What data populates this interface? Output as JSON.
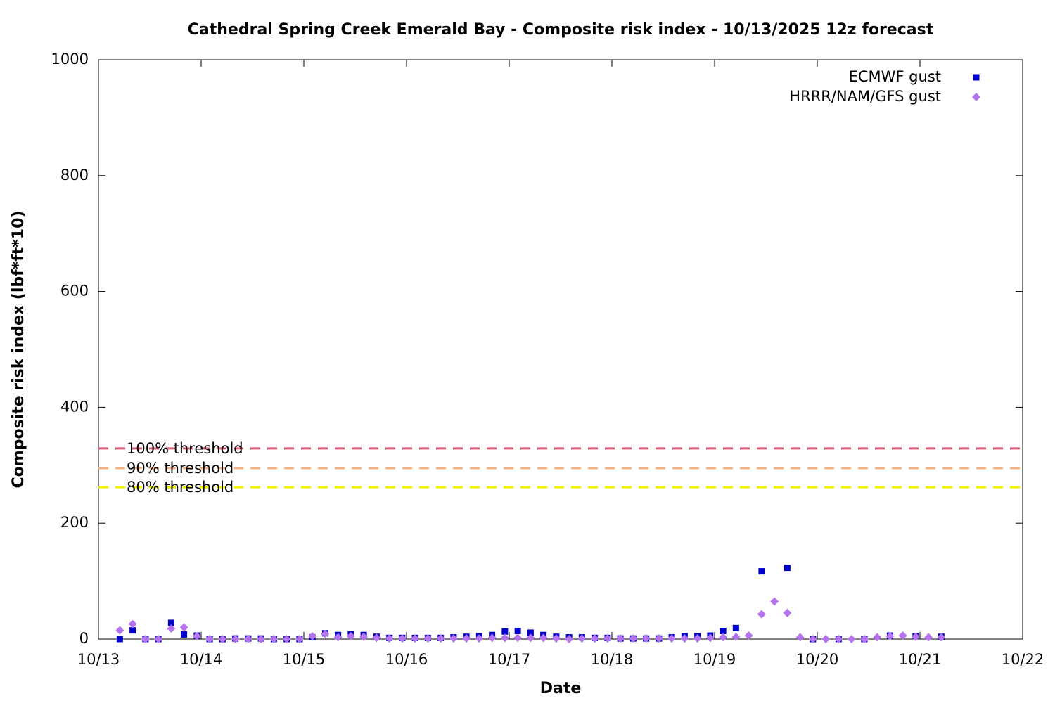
{
  "chart_data": {
    "type": "scatter",
    "title": "Cathedral Spring Creek Emerald Bay - Composite risk index - 10/13/2025 12z forecast",
    "x_label": "Date",
    "y_label": "Composite risk index (lbf*ft*10)",
    "xlim": [
      13,
      22
    ],
    "xticks": [
      {
        "value": 13,
        "label": "10/13"
      },
      {
        "value": 14,
        "label": "10/14"
      },
      {
        "value": 15,
        "label": "10/15"
      },
      {
        "value": 16,
        "label": "10/16"
      },
      {
        "value": 17,
        "label": "10/17"
      },
      {
        "value": 18,
        "label": "10/18"
      },
      {
        "value": 19,
        "label": "10/19"
      },
      {
        "value": 20,
        "label": "10/20"
      },
      {
        "value": 21,
        "label": "10/21"
      },
      {
        "value": 22,
        "label": "10/22"
      }
    ],
    "ylim": [
      0,
      1000
    ],
    "yticks": [
      0,
      200,
      400,
      600,
      800,
      1000
    ],
    "grid": false,
    "legend": "top-right",
    "thresholds": [
      {
        "name": "100% threshold",
        "value": 329,
        "color": "#d9607a"
      },
      {
        "name": "90% threshold",
        "value": 295,
        "color": "#f5b07f"
      },
      {
        "name": "80% threshold",
        "value": 262,
        "color": "#f2f200"
      }
    ],
    "series": [
      {
        "name": "ECMWF gust",
        "color": "#0000cc",
        "marker": "square",
        "x": [
          13.208,
          13.333,
          13.458,
          13.583,
          13.708,
          13.833,
          13.958,
          14.083,
          14.208,
          14.333,
          14.458,
          14.583,
          14.708,
          14.833,
          14.958,
          15.083,
          15.208,
          15.333,
          15.458,
          15.583,
          15.708,
          15.833,
          15.958,
          16.083,
          16.208,
          16.333,
          16.458,
          16.583,
          16.708,
          16.833,
          16.958,
          17.083,
          17.208,
          17.333,
          17.458,
          17.583,
          17.708,
          17.833,
          17.958,
          18.083,
          18.208,
          18.333,
          18.458,
          18.583,
          18.708,
          18.833,
          18.958,
          19.083,
          19.208,
          19.458,
          19.708,
          19.958,
          20.208,
          20.458,
          20.708,
          20.958,
          21.208
        ],
        "values": [
          0,
          15,
          0,
          0,
          28,
          8,
          6,
          0,
          0,
          1,
          1,
          1,
          0,
          0,
          0,
          3,
          10,
          7,
          8,
          7,
          4,
          2,
          2,
          2,
          2,
          2,
          3,
          4,
          5,
          7,
          13,
          14,
          11,
          7,
          4,
          3,
          3,
          2,
          2,
          1,
          1,
          1,
          1,
          3,
          5,
          5,
          6,
          14,
          19,
          117,
          123,
          0,
          0,
          0,
          6,
          5,
          4
        ]
      },
      {
        "name": "HRRR/NAM/GFS gust",
        "color": "#b673f0",
        "marker": "diamond",
        "x": [
          13.208,
          13.333,
          13.458,
          13.583,
          13.708,
          13.833,
          13.958,
          14.083,
          14.208,
          14.333,
          14.458,
          14.583,
          14.708,
          14.833,
          14.958,
          15.083,
          15.208,
          15.333,
          15.458,
          15.583,
          15.708,
          15.833,
          15.958,
          16.083,
          16.208,
          16.333,
          16.458,
          16.583,
          16.708,
          16.833,
          16.958,
          17.083,
          17.208,
          17.333,
          17.458,
          17.583,
          17.708,
          17.833,
          17.958,
          18.083,
          18.208,
          18.333,
          18.458,
          18.583,
          18.708,
          18.833,
          18.958,
          19.083,
          19.208,
          19.333,
          19.458,
          19.583,
          19.708,
          19.833,
          19.958,
          20.083,
          20.208,
          20.333,
          20.458,
          20.583,
          20.708,
          20.833,
          20.958,
          21.083,
          21.208
        ],
        "values": [
          15,
          26,
          0,
          0,
          18,
          20,
          5,
          0,
          0,
          0,
          0,
          0,
          0,
          0,
          0,
          5,
          9,
          3,
          5,
          4,
          2,
          1,
          1,
          1,
          1,
          1,
          1,
          1,
          1,
          2,
          2,
          2,
          2,
          2,
          1,
          0,
          1,
          1,
          1,
          1,
          1,
          1,
          1,
          1,
          1,
          1,
          2,
          3,
          4,
          6,
          43,
          65,
          45,
          3,
          0,
          0,
          0,
          0,
          0,
          3,
          5,
          6,
          4,
          3,
          3
        ]
      }
    ]
  }
}
